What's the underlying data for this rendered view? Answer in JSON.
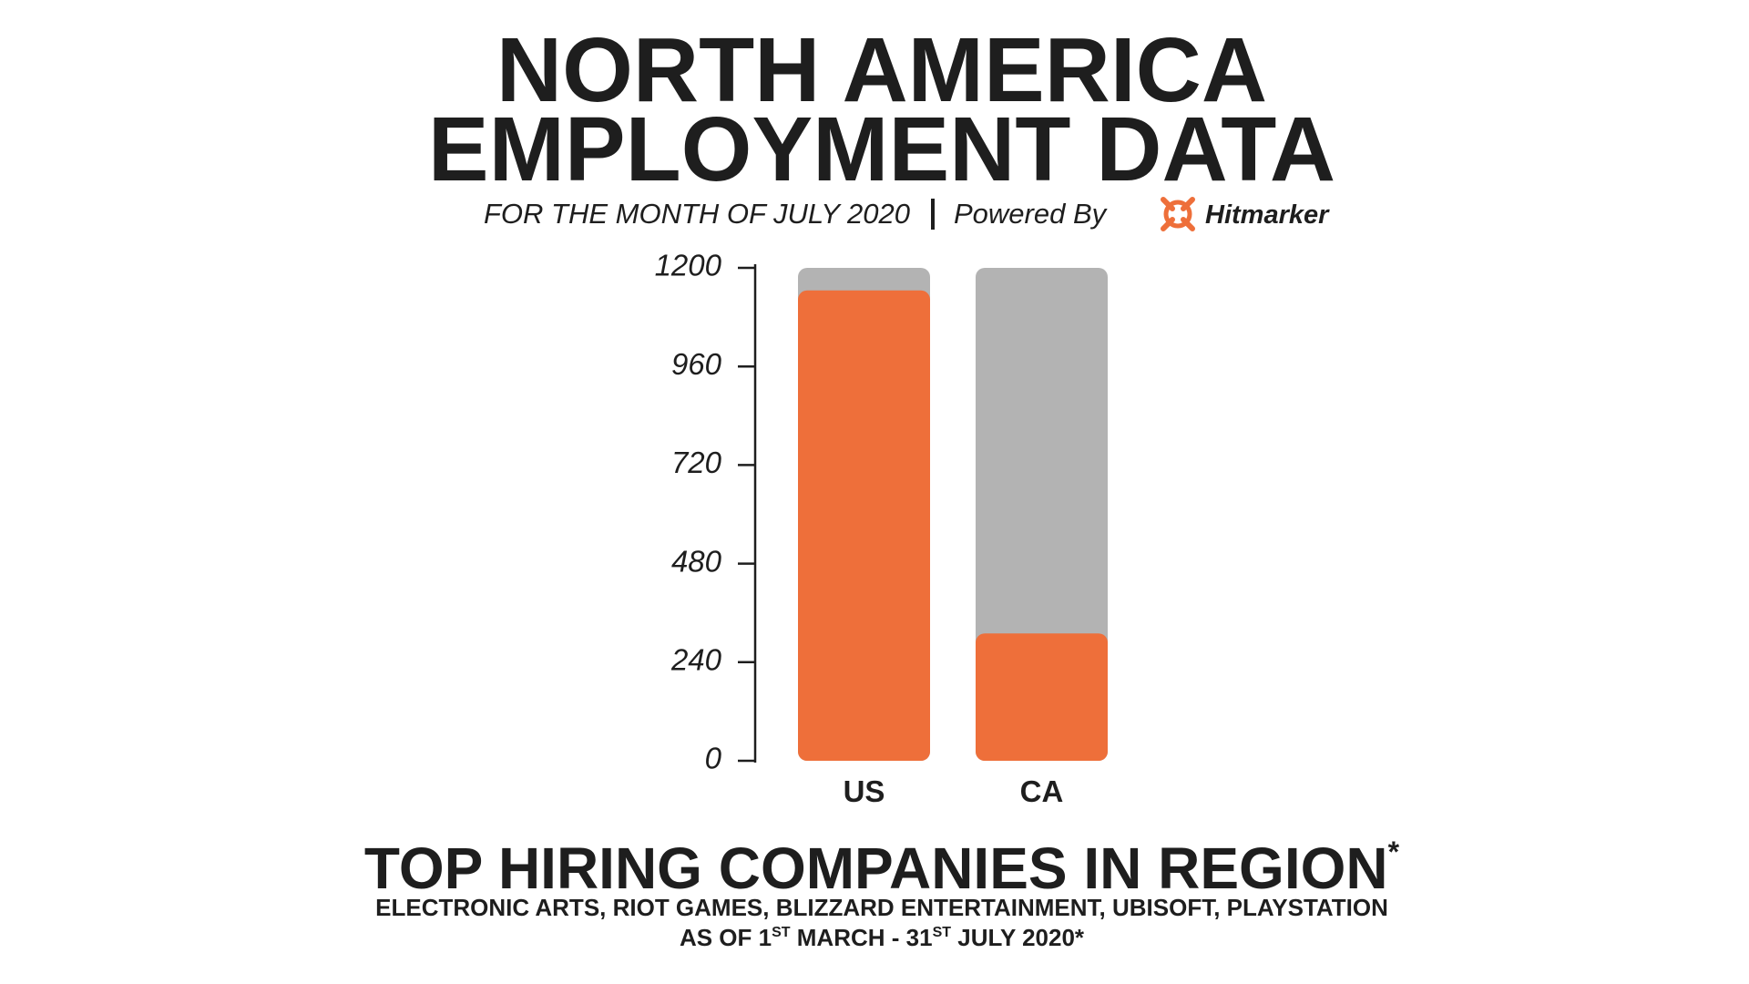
{
  "chart_data": {
    "type": "bar",
    "title": [
      "NORTH AMERICA",
      "EMPLOYMENT DATA"
    ],
    "subtitle": "FOR THE MONTH OF JULY 2020",
    "powered_by": "Powered By",
    "brand": "Hitmarker",
    "categories": [
      "US",
      "CA"
    ],
    "values": [
      1145,
      310
    ],
    "color": "#ee6f3a",
    "track_color": "#b3b3b3",
    "ylim": [
      0,
      1200
    ],
    "yticks": [
      0,
      240,
      480,
      720,
      960,
      1200
    ]
  },
  "footer": {
    "heading": "TOP HIRING COMPANIES IN REGION",
    "heading_mark": "*",
    "companies": "ELECTRONIC ARTS, RIOT GAMES, BLIZZARD ENTERTAINMENT, UBISOFT, PLAYSTATION",
    "period": [
      "AS OF 1",
      "ST",
      " MARCH - 31",
      "ST",
      " JULY 2020*"
    ]
  }
}
